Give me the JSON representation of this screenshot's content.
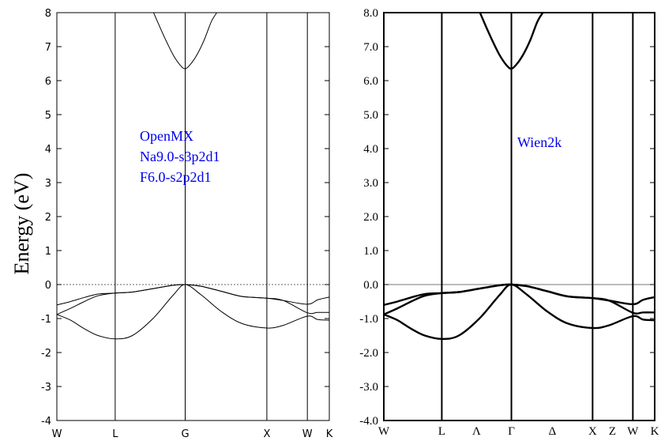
{
  "chart_data": [
    {
      "type": "line",
      "ylabel": "Energy (eV)",
      "ylim": [
        -4,
        8
      ],
      "yticks": [
        -4,
        -3,
        -2,
        -1,
        0,
        1,
        2,
        3,
        4,
        5,
        6,
        7,
        8
      ],
      "ytick_labels": [
        "-4",
        "-3",
        "-2",
        "-1",
        "0",
        "1",
        "2",
        "3",
        "4",
        "5",
        "6",
        "7",
        "8"
      ],
      "xlim": [
        0,
        3.97
      ],
      "kpoints": [
        {
          "label": "W",
          "x": 0.0
        },
        {
          "label": "L",
          "x": 0.85
        },
        {
          "label": "G",
          "x": 1.87
        },
        {
          "label": "X",
          "x": 3.06
        },
        {
          "label": "W",
          "x": 3.65
        },
        {
          "label": "K",
          "x": 3.97
        }
      ],
      "annotation": [
        "OpenMX",
        "Na9.0-s3p2d1",
        "F6.0-s2p2d1"
      ],
      "annotation_color": "#0000ee",
      "fermi_level": 0,
      "series": [
        {
          "x": [
            0,
            0.2,
            0.4,
            0.6,
            0.85,
            1.1,
            1.4,
            1.7,
            1.87,
            2.1,
            2.4,
            2.7,
            3.06,
            3.3,
            3.65,
            3.8,
            3.97
          ],
          "values": [
            -0.6,
            -0.5,
            -0.38,
            -0.28,
            -0.25,
            -0.22,
            -0.12,
            -0.02,
            0.0,
            -0.05,
            -0.2,
            -0.35,
            -0.4,
            -0.47,
            -0.58,
            -0.45,
            -0.37
          ]
        },
        {
          "x": [
            0,
            0.2,
            0.4,
            0.6,
            0.85,
            1.1,
            1.4,
            1.7,
            1.87,
            2.1,
            2.4,
            2.7,
            3.06,
            3.3,
            3.65,
            3.8,
            3.97
          ],
          "values": [
            -0.88,
            -0.7,
            -0.5,
            -0.33,
            -0.25,
            -0.22,
            -0.12,
            -0.02,
            0.0,
            -0.05,
            -0.2,
            -0.35,
            -0.4,
            -0.47,
            -0.83,
            -0.82,
            -0.82
          ]
        },
        {
          "x": [
            0,
            0.2,
            0.4,
            0.6,
            0.85,
            1.1,
            1.4,
            1.7,
            1.87,
            2.1,
            2.4,
            2.7,
            3.06,
            3.3,
            3.65,
            3.8,
            3.97
          ],
          "values": [
            -0.88,
            -1.05,
            -1.3,
            -1.5,
            -1.6,
            -1.5,
            -1.0,
            -0.3,
            0.0,
            -0.3,
            -0.8,
            -1.15,
            -1.28,
            -1.2,
            -0.93,
            -1.03,
            -1.05
          ]
        },
        {
          "x": [
            1.41,
            1.5,
            1.6,
            1.7,
            1.8,
            1.87,
            1.95,
            2.05,
            2.15,
            2.25,
            2.33
          ],
          "values": [
            8.0,
            7.58,
            7.14,
            6.74,
            6.45,
            6.35,
            6.49,
            6.79,
            7.21,
            7.73,
            8.0
          ]
        }
      ]
    },
    {
      "type": "line",
      "ylim": [
        -4,
        8
      ],
      "yticks": [
        -4,
        -3,
        -2,
        -1,
        0,
        1,
        2,
        3,
        4,
        5,
        6,
        7,
        8
      ],
      "ytick_labels": [
        "-4.0",
        "-3.0",
        "-2.0",
        "-1.0",
        "0.0",
        "1.0",
        "2.0",
        "3.0",
        "4.0",
        "5.0",
        "6.0",
        "7.0",
        "8.0"
      ],
      "xlim": [
        0,
        3.97
      ],
      "kpoints": [
        {
          "label": "W",
          "x": 0.0
        },
        {
          "label": "L",
          "x": 0.85
        },
        {
          "label": "Λ",
          "x": 1.36
        },
        {
          "label": "Γ",
          "x": 1.87
        },
        {
          "label": "Δ",
          "x": 2.47
        },
        {
          "label": "X",
          "x": 3.06
        },
        {
          "label": "Z",
          "x": 3.35
        },
        {
          "label": "W",
          "x": 3.65
        },
        {
          "label": "K",
          "x": 3.97
        }
      ],
      "vertical_lines": [
        0.85,
        1.87,
        3.06,
        3.65
      ],
      "annotation": [
        "Wien2k"
      ],
      "annotation_color": "#0000ee",
      "fermi_level": 0,
      "series": [
        {
          "x": [
            0,
            0.2,
            0.4,
            0.6,
            0.85,
            1.1,
            1.4,
            1.7,
            1.87,
            2.1,
            2.4,
            2.7,
            3.06,
            3.3,
            3.65,
            3.8,
            3.97
          ],
          "values": [
            -0.6,
            -0.5,
            -0.38,
            -0.28,
            -0.25,
            -0.22,
            -0.12,
            -0.02,
            0.0,
            -0.05,
            -0.2,
            -0.35,
            -0.4,
            -0.47,
            -0.58,
            -0.45,
            -0.37
          ]
        },
        {
          "x": [
            0,
            0.2,
            0.4,
            0.6,
            0.85,
            1.1,
            1.4,
            1.7,
            1.87,
            2.1,
            2.4,
            2.7,
            3.06,
            3.3,
            3.65,
            3.8,
            3.97
          ],
          "values": [
            -0.88,
            -0.7,
            -0.5,
            -0.33,
            -0.25,
            -0.22,
            -0.12,
            -0.02,
            0.0,
            -0.05,
            -0.2,
            -0.35,
            -0.4,
            -0.47,
            -0.83,
            -0.82,
            -0.82
          ]
        },
        {
          "x": [
            0,
            0.2,
            0.4,
            0.6,
            0.85,
            1.1,
            1.4,
            1.7,
            1.87,
            2.1,
            2.4,
            2.7,
            3.06,
            3.3,
            3.65,
            3.8,
            3.97
          ],
          "values": [
            -0.88,
            -1.05,
            -1.3,
            -1.5,
            -1.6,
            -1.5,
            -1.0,
            -0.3,
            0.0,
            -0.3,
            -0.8,
            -1.15,
            -1.28,
            -1.2,
            -0.93,
            -1.03,
            -1.05
          ]
        },
        {
          "x": [
            1.41,
            1.5,
            1.6,
            1.7,
            1.8,
            1.87,
            1.95,
            2.05,
            2.15,
            2.25,
            2.33
          ],
          "values": [
            8.0,
            7.58,
            7.14,
            6.74,
            6.45,
            6.35,
            6.49,
            6.79,
            7.21,
            7.73,
            8.0
          ]
        }
      ]
    }
  ]
}
